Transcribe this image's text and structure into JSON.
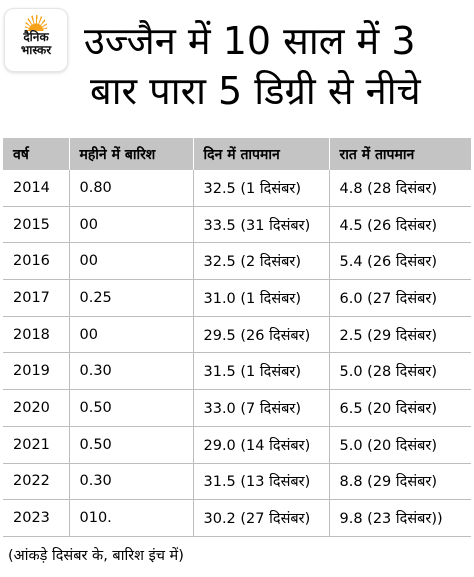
{
  "logo": {
    "line1": "दैनिक",
    "line2": "भास्कर"
  },
  "title": {
    "line1": "उज्जैन में 10 साल में 3",
    "line2": "बार पारा 5 डिग्री से नीचे"
  },
  "table": {
    "headers": [
      "वर्ष",
      "महीने में बारिश",
      "दिन  में तापमान",
      "रात में तापमान"
    ],
    "rows": [
      [
        "2014",
        "0.80",
        "32.5 (1 दिसंबर)",
        "4.8 (28 दिसंबर)"
      ],
      [
        "2015",
        "00",
        "33.5 (31 दिसंबर)",
        "4.5 (26 दिसंबर)"
      ],
      [
        "2016",
        "00",
        "32.5 (2 दिसंबर)",
        "5.4 (26 दिसंबर)"
      ],
      [
        "2017",
        "0.25",
        "31.0 (1 दिसंबर)",
        "6.0 (27 दिसंबर)"
      ],
      [
        "2018",
        "00",
        "29.5 (26 दिसंबर)",
        "2.5 (29 दिसंबर)"
      ],
      [
        "2019",
        "0.30",
        "31.5 (1 दिसंबर)",
        "5.0 (28 दिसंबर)"
      ],
      [
        "2020",
        "0.50",
        "33.0 (7 दिसंबर)",
        "6.5 (20 दिसंबर)"
      ],
      [
        "2021",
        "0.50",
        "29.0 (14 दिसंबर)",
        "5.0 (20 दिसंबर)"
      ],
      [
        "2022",
        "0.30",
        "31.5 (13 दिसंबर)",
        "8.8 (29 दिसंबर)"
      ],
      [
        "2023",
        "010.",
        "30.2 (27 दिसंबर)",
        "9.8 (23 दिसंबर))"
      ]
    ]
  },
  "footnote": "(आंकड़े दिसंबर के, बारिश इंच में)"
}
